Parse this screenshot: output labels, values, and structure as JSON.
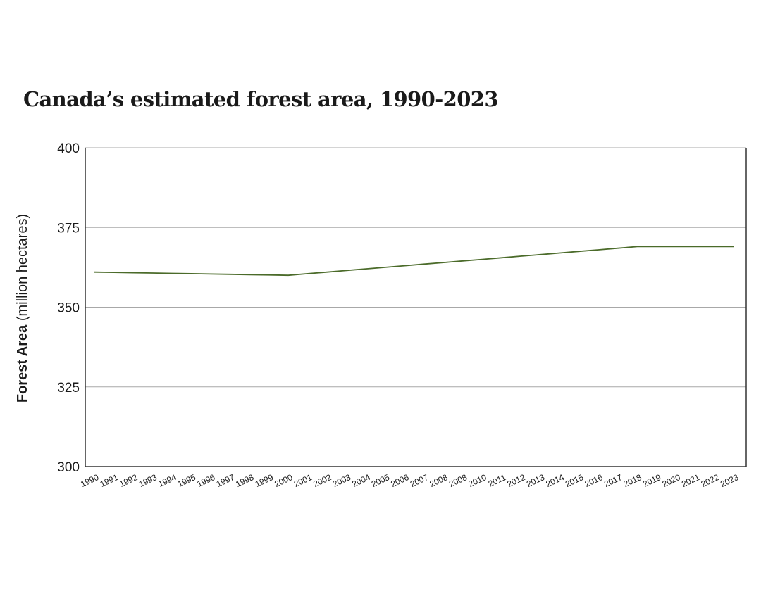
{
  "title": "Canada’s estimated forest area, 1990-2023",
  "chart_data": {
    "type": "line",
    "title": "Canada’s estimated forest area, 1990-2023",
    "ylabel_bold": "Forest Area",
    "ylabel_unit": "(million hectares)",
    "xlabel": "",
    "categories": [
      "1990",
      "1991",
      "1992",
      "1993",
      "1994",
      "1995",
      "1996",
      "1997",
      "1998",
      "1999",
      "2000",
      "2001",
      "2002",
      "2003",
      "2004",
      "2005",
      "2006",
      "2007",
      "2008",
      "2008",
      "2010",
      "2011",
      "2012",
      "2013",
      "2014",
      "2015",
      "2016",
      "2017",
      "2018",
      "2019",
      "2020",
      "2021",
      "2022",
      "2023"
    ],
    "series": [
      {
        "values": [
          361.0,
          360.9,
          360.8,
          360.7,
          360.6,
          360.5,
          360.4,
          360.3,
          360.2,
          360.1,
          360.0,
          360.5,
          361.0,
          361.5,
          362.0,
          362.5,
          363.0,
          363.5,
          364.0,
          364.5,
          365.0,
          365.5,
          366.0,
          366.5,
          367.0,
          367.5,
          368.0,
          368.5,
          369.0,
          369.0,
          369.0,
          369.0,
          369.0,
          369.0
        ],
        "color": "#4b6b2a"
      }
    ],
    "yticks": [
      300,
      325,
      350,
      375,
      400
    ],
    "ylim": [
      300,
      400
    ],
    "grid": true,
    "colors": {
      "line": "#4b6b2a",
      "grid": "#a8a8a8",
      "axis": "#333333"
    }
  }
}
